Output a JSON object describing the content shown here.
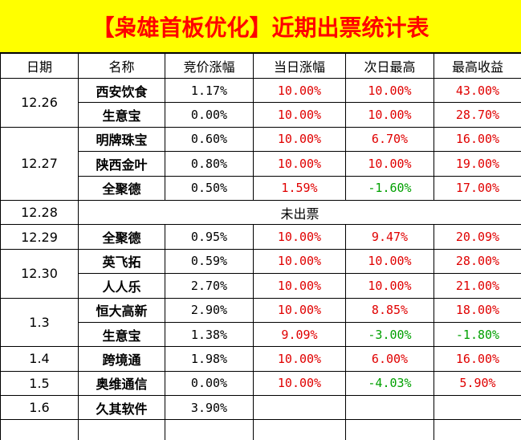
{
  "title": "【枭雄首板优化】近期出票统计表",
  "header": [
    "日期",
    "名称",
    "竞价涨幅",
    "当日涨幅",
    "次日最高",
    "最高收益"
  ],
  "groups": [
    {
      "date": "12.26",
      "rows": [
        [
          "西安饮食",
          "1.17%",
          "10.00%",
          "10.00%",
          "43.00%"
        ],
        [
          "生意宝",
          "0.00%",
          "10.00%",
          "10.00%",
          "28.70%"
        ]
      ]
    },
    {
      "date": "12.27",
      "rows": [
        [
          "明牌珠宝",
          "0.60%",
          "10.00%",
          "6.70%",
          "16.00%"
        ],
        [
          "陕西金叶",
          "0.80%",
          "10.00%",
          "10.00%",
          "19.00%"
        ],
        [
          "全聚德",
          "0.50%",
          "1.59%",
          "-1.60%",
          "17.00%"
        ]
      ]
    },
    {
      "date": "12.28",
      "note": "未出票"
    },
    {
      "date": "12.29",
      "rows": [
        [
          "全聚德",
          "0.95%",
          "10.00%",
          "9.47%",
          "20.09%"
        ]
      ]
    },
    {
      "date": "12.30",
      "rows": [
        [
          "英飞拓",
          "0.59%",
          "10.00%",
          "10.00%",
          "28.00%"
        ],
        [
          "人人乐",
          "2.70%",
          "10.00%",
          "10.00%",
          "21.00%"
        ]
      ]
    },
    {
      "date": "1.3",
      "rows": [
        [
          "恒大高新",
          "2.90%",
          "10.00%",
          "8.85%",
          "18.00%"
        ],
        [
          "生意宝",
          "1.38%",
          "9.09%",
          "-3.00%",
          "-1.80%"
        ]
      ]
    },
    {
      "date": "1.4",
      "rows": [
        [
          "跨境通",
          "1.98%",
          "10.00%",
          "6.00%",
          "16.00%"
        ]
      ]
    },
    {
      "date": "1.5",
      "rows": [
        [
          "奥维通信",
          "0.00%",
          "10.00%",
          "-4.03%",
          "5.90%"
        ]
      ]
    },
    {
      "date": "1.6",
      "rows": [
        [
          "久其软件",
          "3.90%"
        ]
      ]
    }
  ]
}
